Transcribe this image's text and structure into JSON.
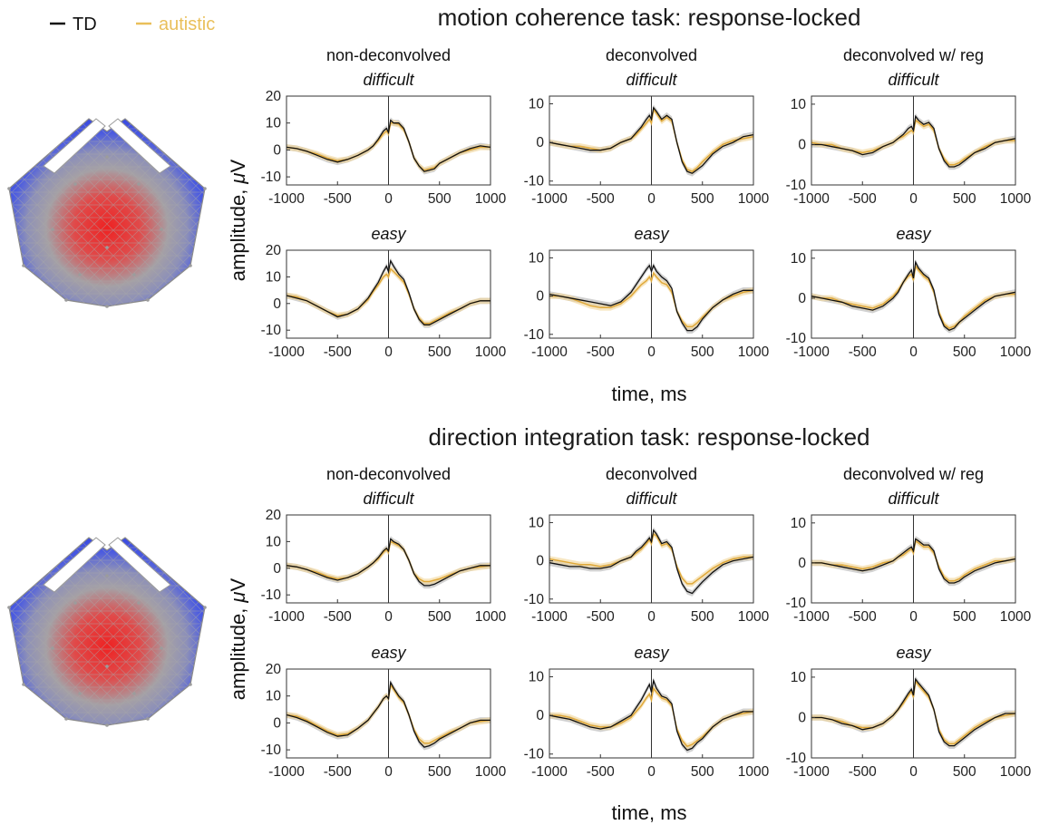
{
  "legend": [
    {
      "label": "TD",
      "color": "#111111"
    },
    {
      "label": "autistic",
      "color": "#e9bf5a"
    }
  ],
  "colors": {
    "td_line": "#111111",
    "td_band": "#9a9a9a",
    "aut_line": "#e0a93a",
    "aut_band": "#f2d597",
    "topo_low": "#3b4fe0",
    "topo_mid": "#9a9a9a",
    "topo_high": "#ee2222"
  },
  "xlabel": "time, ms",
  "ylabel_html": [
    "amplitude, ",
    "μ",
    "V"
  ],
  "col_titles": [
    "non-deconvolved",
    "deconvolved",
    "deconvolved w/ reg"
  ],
  "conditions": [
    "difficult",
    "easy"
  ],
  "sections": [
    {
      "title": "motion coherence task: response-locked",
      "topomap_icon": "scalp-topography-centroparietal"
    },
    {
      "title": "direction integration task: response-locked",
      "topomap_icon": "scalp-topography-centroparietal"
    }
  ],
  "chart_data": {
    "type": "line",
    "x_ticks": [
      -1000,
      -500,
      0,
      500,
      1000
    ],
    "x_tick_labels": [
      "-1000",
      "-500",
      "0",
      "500",
      "1000"
    ],
    "xlim": [
      -1000,
      1000
    ],
    "xlabel": "time, ms",
    "ylabel": "amplitude, μV",
    "series_names": [
      "TD",
      "autistic"
    ],
    "x": [
      -1000,
      -900,
      -800,
      -700,
      -600,
      -500,
      -400,
      -300,
      -200,
      -150,
      -100,
      -50,
      -20,
      0,
      20,
      50,
      100,
      150,
      200,
      250,
      300,
      350,
      400,
      450,
      500,
      600,
      700,
      800,
      900,
      1000
    ],
    "panels": [
      {
        "section": 0,
        "column": 0,
        "condition": "difficult",
        "ylim": [
          -13,
          20
        ],
        "y_ticks": [
          -10,
          0,
          10,
          20
        ],
        "series": [
          {
            "name": "TD",
            "values": [
              1,
              0.5,
              -0.5,
              -2,
              -3.5,
              -4.5,
              -3.5,
              -2,
              0,
              1.5,
              4,
              7,
              8,
              6.5,
              11,
              10,
              10,
              8,
              3,
              -3,
              -6,
              -8,
              -7.5,
              -7,
              -5,
              -3,
              -1,
              0.5,
              1.5,
              1
            ]
          },
          {
            "name": "autistic",
            "values": [
              1,
              0.5,
              -0.5,
              -1.5,
              -3,
              -4,
              -3.5,
              -2,
              0,
              1.5,
              3.5,
              6,
              7,
              6,
              10,
              10,
              9.5,
              7.5,
              3,
              -3,
              -6,
              -7.5,
              -7,
              -6.5,
              -5,
              -3,
              -1,
              0,
              1,
              1
            ]
          }
        ]
      },
      {
        "section": 0,
        "column": 1,
        "condition": "difficult",
        "ylim": [
          -11,
          12
        ],
        "y_ticks": [
          -10,
          0,
          10
        ],
        "series": [
          {
            "name": "TD",
            "values": [
              0,
              -0.5,
              -1,
              -1.5,
              -2,
              -2,
              -1.5,
              0,
              1,
              2.5,
              4,
              6,
              7,
              6,
              9,
              8,
              6,
              7,
              6,
              0,
              -5,
              -7.5,
              -8,
              -7,
              -6,
              -3,
              -1,
              0,
              1.5,
              2
            ]
          },
          {
            "name": "autistic",
            "values": [
              0,
              -0.5,
              -1,
              -1,
              -1.5,
              -2,
              -1.5,
              0,
              1,
              2,
              3.5,
              5,
              6,
              5,
              8.5,
              7.5,
              5.5,
              6.5,
              5.5,
              0,
              -4.5,
              -7,
              -7.5,
              -6.5,
              -5,
              -2.5,
              -0.5,
              0.5,
              1,
              1.5
            ]
          }
        ]
      },
      {
        "section": 0,
        "column": 2,
        "condition": "difficult",
        "ylim": [
          -10,
          12
        ],
        "y_ticks": [
          -10,
          0,
          10
        ],
        "series": [
          {
            "name": "TD",
            "values": [
              0,
              0,
              -0.5,
              -1,
              -1.5,
              -2.5,
              -2,
              -0.5,
              0.5,
              1.5,
              2.5,
              4,
              4.5,
              3.5,
              7,
              6,
              5,
              5.5,
              4,
              -1,
              -4,
              -5.5,
              -5.5,
              -5,
              -4,
              -2,
              -1,
              0.5,
              1,
              1.5
            ]
          },
          {
            "name": "autistic",
            "values": [
              0.5,
              0,
              0,
              -1,
              -1.5,
              -2,
              -1.5,
              -0.5,
              0.5,
              1.5,
              2,
              3,
              3.5,
              3,
              6,
              5.5,
              4.5,
              5,
              3.5,
              -1,
              -3.5,
              -5,
              -5,
              -4.5,
              -3.5,
              -2,
              -0.5,
              0.5,
              1,
              1
            ]
          }
        ]
      },
      {
        "section": 0,
        "column": 0,
        "condition": "easy",
        "ylim": [
          -13,
          20
        ],
        "y_ticks": [
          -10,
          0,
          10,
          20
        ],
        "series": [
          {
            "name": "TD",
            "values": [
              3,
              2,
              1,
              -1,
              -3,
              -5,
              -4,
              -2,
              2,
              5,
              8,
              12,
              14,
              12,
              16,
              14,
              11,
              9,
              4,
              -2,
              -6,
              -8,
              -8,
              -7,
              -6,
              -4,
              -2,
              0,
              1,
              1
            ]
          },
          {
            "name": "autistic",
            "values": [
              3,
              2.5,
              1,
              -1,
              -3,
              -4.5,
              -4,
              -2,
              1.5,
              4.5,
              7,
              10,
              11,
              10,
              13,
              12,
              10,
              8,
              3.5,
              -2,
              -5.5,
              -7.5,
              -7.5,
              -6.5,
              -5.5,
              -3.5,
              -2,
              0,
              1,
              1
            ]
          }
        ]
      },
      {
        "section": 0,
        "column": 1,
        "condition": "easy",
        "ylim": [
          -11,
          12
        ],
        "y_ticks": [
          -10,
          0,
          10
        ],
        "series": [
          {
            "name": "TD",
            "values": [
              0.5,
              0,
              -0.5,
              -1,
              -1.5,
              -2,
              -2.5,
              -1.5,
              1,
              3,
              5,
              7,
              8,
              6.5,
              8,
              6.5,
              5,
              4,
              2,
              -4,
              -7,
              -9,
              -9,
              -8,
              -6,
              -3,
              -1,
              0.5,
              1.5,
              1.5
            ]
          },
          {
            "name": "autistic",
            "values": [
              0,
              0,
              -0.5,
              -1.5,
              -2.5,
              -3,
              -3,
              -2,
              0,
              1.5,
              3,
              4,
              5,
              4,
              6,
              5,
              3.5,
              3,
              1,
              -4,
              -6.5,
              -8,
              -8,
              -7,
              -5.5,
              -3,
              -1,
              0,
              1,
              1.5
            ]
          }
        ]
      },
      {
        "section": 0,
        "column": 2,
        "condition": "easy",
        "ylim": [
          -10,
          12
        ],
        "y_ticks": [
          -10,
          0,
          10
        ],
        "series": [
          {
            "name": "TD",
            "values": [
              0.5,
              0,
              -0.5,
              -1,
              -2,
              -2.5,
              -3,
              -2,
              0,
              1.5,
              4,
              6,
              7,
              5,
              9,
              7.5,
              6,
              5,
              2,
              -4,
              -7,
              -8,
              -7.5,
              -6,
              -5,
              -3,
              -1,
              0.5,
              1,
              1.5
            ]
          },
          {
            "name": "autistic",
            "values": [
              0.5,
              0,
              0,
              -1,
              -1.5,
              -2,
              -2.5,
              -1.5,
              0.5,
              2,
              4,
              5.5,
              6,
              4.5,
              8,
              7,
              5.5,
              4.5,
              1.5,
              -3.5,
              -6.5,
              -7.5,
              -7,
              -6,
              -4.5,
              -2.5,
              -0.5,
              0.5,
              1,
              1
            ]
          }
        ]
      },
      {
        "section": 1,
        "column": 0,
        "condition": "difficult",
        "ylim": [
          -13,
          20
        ],
        "y_ticks": [
          -10,
          0,
          10,
          20
        ],
        "series": [
          {
            "name": "TD",
            "values": [
              1,
              0.5,
              -0.5,
              -2,
              -3.5,
              -4.5,
              -3.5,
              -2,
              0.5,
              2,
              4,
              6.5,
              7.5,
              6.5,
              11,
              10,
              9,
              7,
              3,
              -2,
              -5,
              -6.5,
              -6.5,
              -6,
              -5,
              -3,
              -1,
              0,
              1,
              1
            ]
          },
          {
            "name": "autistic",
            "values": [
              1,
              0.5,
              -0.5,
              -1.5,
              -3,
              -4,
              -3.5,
              -2,
              0.5,
              2,
              3.5,
              6,
              7,
              6,
              10,
              9.5,
              8.5,
              7,
              3,
              -2,
              -4,
              -5,
              -5,
              -4.5,
              -4,
              -2.5,
              -1,
              0,
              0.5,
              1
            ]
          }
        ]
      },
      {
        "section": 1,
        "column": 1,
        "condition": "difficult",
        "ylim": [
          -11,
          12
        ],
        "y_ticks": [
          -10,
          0,
          10
        ],
        "series": [
          {
            "name": "TD",
            "values": [
              -0.5,
              -1,
              -1.5,
              -1.5,
              -2,
              -2,
              -1.5,
              0,
              1,
              2.5,
              3.5,
              5,
              6,
              5,
              8,
              7,
              4.5,
              5,
              3.5,
              -2,
              -6,
              -8,
              -8.5,
              -7,
              -5.5,
              -3,
              -1,
              0,
              0.5,
              1
            ]
          },
          {
            "name": "autistic",
            "values": [
              0.5,
              0,
              -0.5,
              -1,
              -1,
              -1.5,
              -1,
              0,
              1,
              2,
              3,
              4.5,
              5.5,
              4.5,
              7,
              6.5,
              4,
              4.5,
              3,
              -1.5,
              -4.5,
              -6,
              -6,
              -5,
              -4,
              -2,
              -0.5,
              0.5,
              1,
              1
            ]
          }
        ]
      },
      {
        "section": 1,
        "column": 2,
        "condition": "difficult",
        "ylim": [
          -10,
          12
        ],
        "y_ticks": [
          -10,
          0,
          10
        ],
        "series": [
          {
            "name": "TD",
            "values": [
              0,
              0,
              -0.5,
              -1,
              -1.5,
              -2,
              -1.5,
              -0.5,
              0.5,
              1.5,
              2.5,
              3.5,
              4,
              3,
              6,
              5.5,
              4.5,
              4.5,
              3,
              -1.5,
              -4,
              -5,
              -5,
              -4.5,
              -3.5,
              -2,
              -1,
              0,
              0.5,
              1
            ]
          },
          {
            "name": "autistic",
            "values": [
              0,
              0,
              -0.5,
              -0.5,
              -1,
              -1.5,
              -1,
              0,
              0.5,
              1.5,
              2,
              3,
              3.5,
              2.5,
              5.5,
              5,
              4,
              4,
              2.5,
              -1,
              -3.5,
              -4.5,
              -4.5,
              -4,
              -3,
              -1.5,
              -0.5,
              0.5,
              0.5,
              1
            ]
          }
        ]
      },
      {
        "section": 1,
        "column": 0,
        "condition": "easy",
        "ylim": [
          -13,
          20
        ],
        "y_ticks": [
          -10,
          0,
          10,
          20
        ],
        "series": [
          {
            "name": "TD",
            "values": [
              3,
              2,
              0.5,
              -1.5,
              -3.5,
              -5,
              -4.5,
              -2,
              1,
              3.5,
              6,
              9,
              10,
              9,
              15,
              13,
              10,
              8,
              3,
              -3,
              -7,
              -9,
              -8.5,
              -7.5,
              -6,
              -4,
              -2,
              0,
              1,
              1
            ]
          },
          {
            "name": "autistic",
            "values": [
              3,
              2.5,
              1,
              -1,
              -3,
              -4.5,
              -4,
              -2,
              1,
              3.5,
              6,
              9,
              10,
              9,
              14,
              12.5,
              9.5,
              7.5,
              3,
              -2.5,
              -6,
              -7.5,
              -7.5,
              -6.5,
              -5.5,
              -3.5,
              -2,
              0,
              0.5,
              1
            ]
          }
        ]
      },
      {
        "section": 1,
        "column": 1,
        "condition": "easy",
        "ylim": [
          -11,
          12
        ],
        "y_ticks": [
          -10,
          0,
          10
        ],
        "series": [
          {
            "name": "TD",
            "values": [
              0,
              -0.5,
              -1,
              -2,
              -3,
              -3.5,
              -3,
              -1.5,
              0,
              2,
              4,
              6.5,
              8,
              6,
              9,
              7,
              5,
              4.5,
              3,
              -4,
              -7.5,
              -9,
              -8.5,
              -7,
              -6,
              -3,
              -1,
              0,
              1,
              1
            ]
          },
          {
            "name": "autistic",
            "values": [
              0,
              0,
              -0.5,
              -1.5,
              -2.5,
              -3,
              -3,
              -2,
              -0.5,
              1,
              2.5,
              4.5,
              5.5,
              4,
              7,
              6,
              4.5,
              4,
              2.5,
              -3.5,
              -6.5,
              -8,
              -7.5,
              -6.5,
              -5.5,
              -3,
              -1,
              0,
              0.5,
              1
            ]
          }
        ]
      },
      {
        "section": 1,
        "column": 2,
        "condition": "easy",
        "ylim": [
          -10,
          12
        ],
        "y_ticks": [
          -10,
          0,
          10
        ],
        "series": [
          {
            "name": "TD",
            "values": [
              0,
              0,
              -0.5,
              -1.5,
              -2,
              -3,
              -2.5,
              -1.5,
              0.5,
              2,
              4,
              6,
              7,
              5.5,
              9.5,
              8.5,
              7,
              5.5,
              2,
              -3.5,
              -6,
              -7,
              -7,
              -6,
              -5,
              -3,
              -1.5,
              0,
              1,
              1
            ]
          },
          {
            "name": "autistic",
            "values": [
              0,
              0,
              -0.5,
              -1,
              -2,
              -2.5,
              -2.5,
              -1.5,
              0.5,
              2,
              3.5,
              5.5,
              6.5,
              5,
              9,
              8,
              6.5,
              5,
              2,
              -3,
              -5.5,
              -6.5,
              -6.5,
              -5.5,
              -4.5,
              -2.5,
              -1,
              0,
              0.5,
              1
            ]
          }
        ]
      }
    ]
  }
}
